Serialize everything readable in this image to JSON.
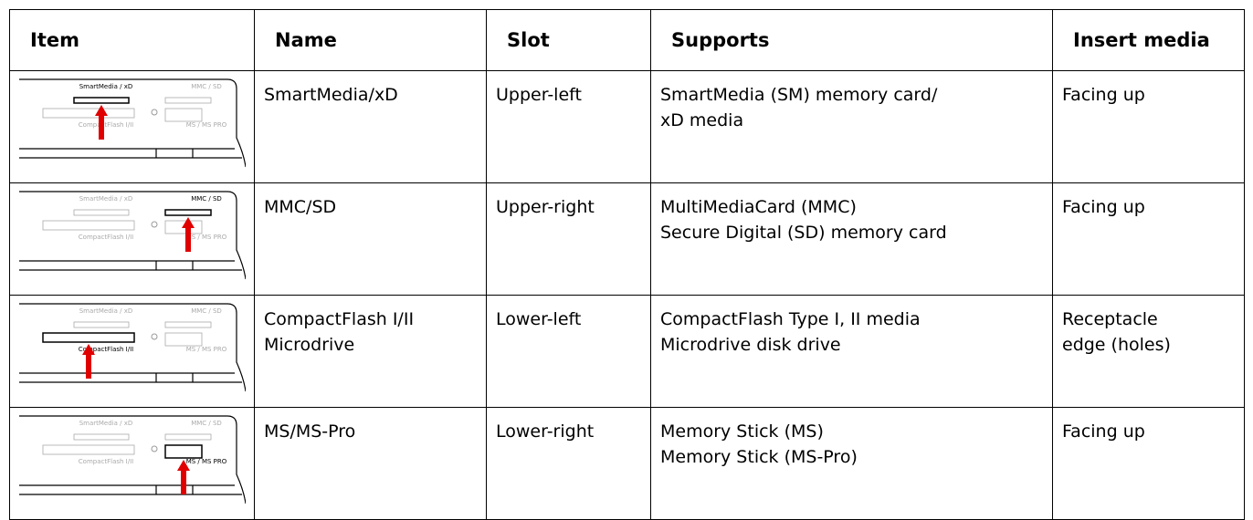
{
  "table": {
    "header": [
      "Item",
      "Name",
      "Slot",
      "Supports",
      "Insert media"
    ],
    "rows": [
      {
        "name": [
          "SmartMedia/xD"
        ],
        "slot": "Upper-left",
        "supports": [
          "SmartMedia (SM) memory card/",
          "xD media"
        ],
        "insert": [
          "Facing up"
        ]
      },
      {
        "name": [
          "MMC/SD"
        ],
        "slot": "Upper-right",
        "supports": [
          "MultiMediaCard (MMC)",
          "Secure Digital (SD) memory card"
        ],
        "insert": [
          "Facing up"
        ]
      },
      {
        "name": [
          "CompactFlash I/II",
          "Microdrive"
        ],
        "slot": "Lower-left",
        "supports": [
          "CompactFlash Type I, II media",
          "Microdrive disk drive"
        ],
        "insert": [
          "Receptacle",
          "edge (holes)"
        ]
      },
      {
        "name": [
          "MS/MS-Pro"
        ],
        "slot": "Lower-right",
        "supports": [
          "Memory Stick (MS)",
          "Memory Stick (MS-Pro)"
        ],
        "insert": [
          "Facing up"
        ]
      }
    ]
  },
  "illustration": {
    "labels": [
      "SmartMedia / xD",
      "MMC / SD",
      "CompactFlash I/II",
      "MS / MS PRO"
    ]
  }
}
